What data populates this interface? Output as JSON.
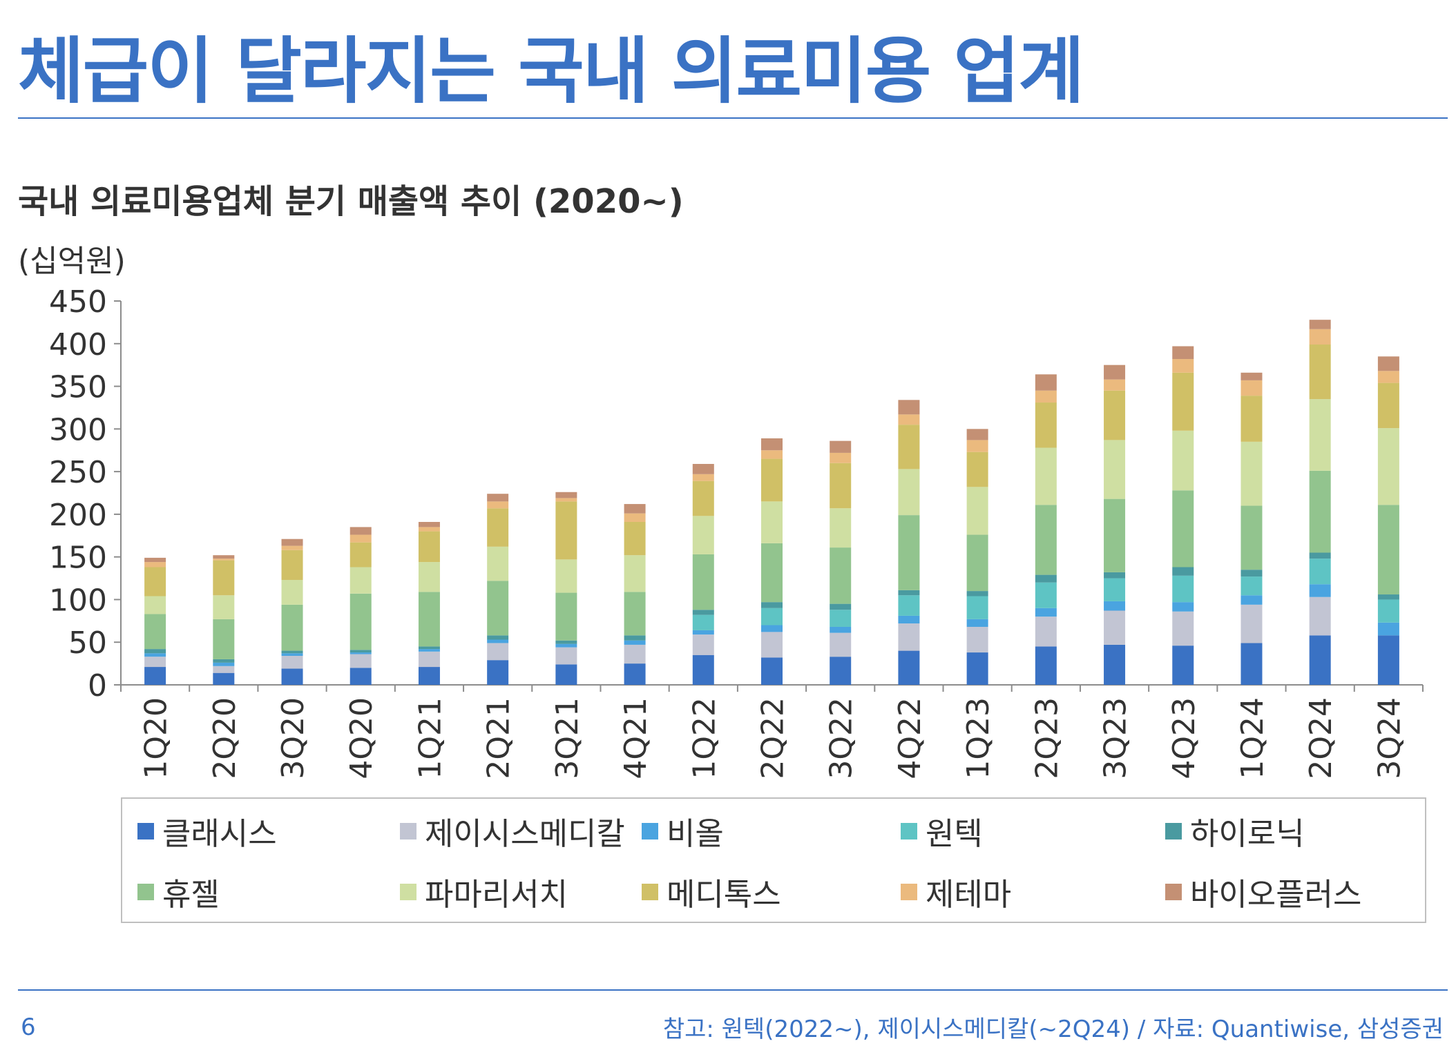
{
  "page": {
    "title": "체급이 달라지는 국내 의료미용 업계",
    "subtitle": "국내 의료미용업체 분기 매출액 추이 (2020~)",
    "unit_label": "(십억원)",
    "page_number": "6",
    "source_note": "참고: 원텍(2022~), 제이시스메디칼(~2Q24) / 자료: Quantiwise, 삼성증권",
    "accent_color": "#3a72c4"
  },
  "chart_data": {
    "type": "bar",
    "stacked": true,
    "title": "국내 의료미용업체 분기 매출액 추이 (2020~)",
    "ylabel": "(십억원)",
    "xlabel": "",
    "ylim": [
      0,
      450
    ],
    "yticks": [
      0,
      50,
      100,
      150,
      200,
      250,
      300,
      350,
      400,
      450
    ],
    "grid": false,
    "legend_position": "bottom",
    "categories": [
      "1Q20",
      "2Q20",
      "3Q20",
      "4Q20",
      "1Q21",
      "2Q21",
      "3Q21",
      "4Q21",
      "1Q22",
      "2Q22",
      "3Q22",
      "4Q22",
      "1Q23",
      "2Q23",
      "3Q23",
      "4Q23",
      "1Q24",
      "2Q24",
      "3Q24"
    ],
    "series": [
      {
        "name": "클래시스",
        "color": "#3a72c4",
        "values": [
          21,
          14,
          19,
          20,
          21,
          29,
          24,
          25,
          35,
          32,
          33,
          40,
          38,
          45,
          47,
          46,
          49,
          58,
          58
        ]
      },
      {
        "name": "제이시스메디칼",
        "color": "#c2c5d3",
        "values": [
          12,
          8,
          15,
          16,
          18,
          20,
          20,
          22,
          24,
          30,
          28,
          32,
          30,
          35,
          40,
          40,
          45,
          45,
          0
        ]
      },
      {
        "name": "비올",
        "color": "#4aa4e0",
        "values": [
          4,
          4,
          3,
          2,
          3,
          4,
          4,
          5,
          5,
          8,
          7,
          9,
          9,
          10,
          11,
          11,
          11,
          15,
          15
        ]
      },
      {
        "name": "원텍",
        "color": "#5ec4c4",
        "values": [
          0,
          0,
          0,
          0,
          0,
          0,
          0,
          0,
          18,
          20,
          20,
          24,
          27,
          30,
          27,
          31,
          22,
          30,
          27
        ]
      },
      {
        "name": "하이로닉",
        "color": "#4a9aa0",
        "values": [
          5,
          4,
          3,
          3,
          3,
          5,
          4,
          6,
          6,
          7,
          7,
          6,
          6,
          9,
          7,
          10,
          8,
          7,
          6
        ]
      },
      {
        "name": "휴젤",
        "color": "#92c48e",
        "values": [
          41,
          47,
          54,
          66,
          64,
          64,
          56,
          51,
          65,
          69,
          66,
          88,
          66,
          82,
          86,
          90,
          75,
          96,
          105
        ]
      },
      {
        "name": "파마리서치",
        "color": "#cfdfa2",
        "values": [
          21,
          28,
          29,
          31,
          35,
          40,
          39,
          43,
          45,
          49,
          46,
          54,
          56,
          67,
          69,
          70,
          75,
          84,
          90
        ]
      },
      {
        "name": "메디톡스",
        "color": "#d0c066",
        "values": [
          34,
          41,
          35,
          29,
          36,
          45,
          68,
          39,
          41,
          50,
          53,
          52,
          41,
          53,
          58,
          68,
          54,
          64,
          53
        ]
      },
      {
        "name": "제테마",
        "color": "#ebba7e",
        "values": [
          6,
          2,
          5,
          9,
          5,
          8,
          4,
          10,
          8,
          10,
          12,
          12,
          14,
          14,
          13,
          16,
          18,
          18,
          14
        ]
      },
      {
        "name": "바이오플러스",
        "color": "#c49074",
        "values": [
          5,
          4,
          8,
          9,
          6,
          9,
          7,
          11,
          12,
          14,
          14,
          17,
          13,
          19,
          17,
          15,
          9,
          11,
          17
        ]
      }
    ]
  }
}
